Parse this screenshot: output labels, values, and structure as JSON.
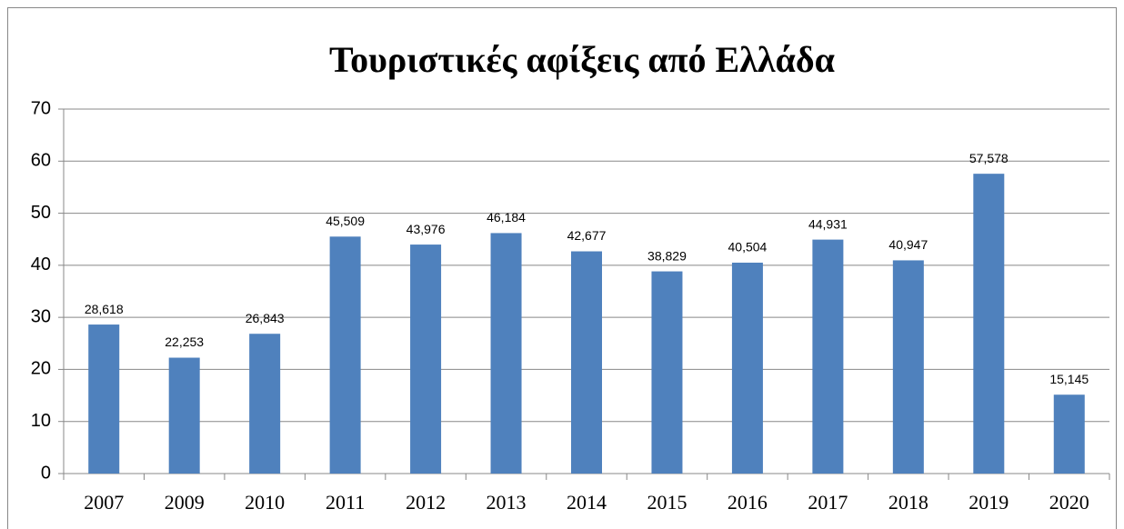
{
  "chart_data": {
    "type": "bar",
    "title": "Τουριστικές αφίξεις από Ελλάδα",
    "categories": [
      "2007",
      "2009",
      "2010",
      "2011",
      "2012",
      "2013",
      "2014",
      "2015",
      "2016",
      "2017",
      "2018",
      "2019",
      "2020"
    ],
    "values": [
      28.618,
      22.253,
      26.843,
      45.509,
      43.976,
      46.184,
      42.677,
      38.829,
      40.504,
      44.931,
      40.947,
      57.578,
      15.145
    ],
    "value_labels": [
      "28,618",
      "22,253",
      "26,843",
      "45,509",
      "43,976",
      "46,184",
      "42,677",
      "38,829",
      "40,504",
      "44,931",
      "40,947",
      "57,578",
      "15,145"
    ],
    "color": "#4f81bd",
    "ylim": [
      0,
      70
    ],
    "yticks": [
      0,
      10,
      20,
      30,
      40,
      50,
      60,
      70
    ],
    "grid": true
  }
}
